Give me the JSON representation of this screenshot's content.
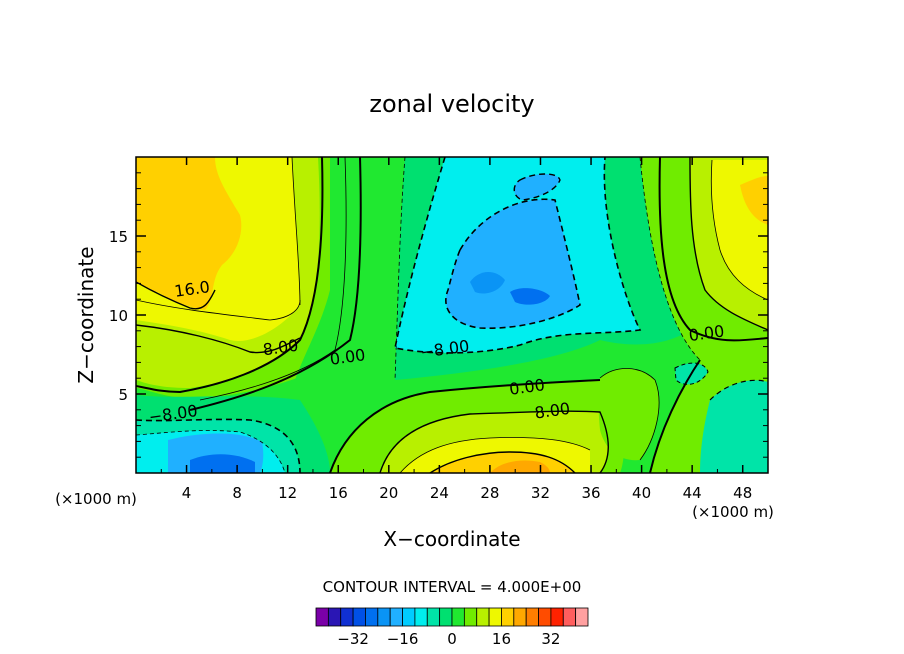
{
  "chart_data": {
    "type": "heatmap",
    "subtype": "filled-contour",
    "title": "zonal velocity",
    "xlabel": "X−coordinate",
    "ylabel": "Z−coordinate",
    "x_unit_left": "(×1000 m)",
    "x_unit_right": "(×1000 m)",
    "xlim": [
      0,
      50
    ],
    "ylim": [
      0,
      20
    ],
    "x_ticks": [
      4,
      8,
      12,
      16,
      20,
      24,
      28,
      32,
      36,
      40,
      44,
      48
    ],
    "y_ticks": [
      5,
      10,
      15
    ],
    "grid": false,
    "contour_interval_label": "CONTOUR INTERVAL = 4.000E+00",
    "contour_interval": 4,
    "colorbar": {
      "levels": [
        -40,
        -36,
        -32,
        -28,
        -24,
        -20,
        -16,
        -12,
        -8,
        -4,
        0,
        4,
        8,
        12,
        16,
        20,
        24,
        28,
        32,
        36,
        40
      ],
      "colors": [
        "#7a00a8",
        "#2a16b4",
        "#1030d2",
        "#0050e6",
        "#0070f0",
        "#0a94f5",
        "#20b0ff",
        "#00ccff",
        "#00eeee",
        "#00e4a8",
        "#00e070",
        "#20e830",
        "#70ec00",
        "#b8f000",
        "#eef800",
        "#ffd000",
        "#ffa800",
        "#ff7e00",
        "#ff4c00",
        "#ff2200",
        "#ff5e5e",
        "#ffa0a0"
      ],
      "tick_labels": [
        "−32",
        "−16",
        "0",
        "16",
        "32"
      ],
      "tick_values": [
        -32,
        -16,
        0,
        16,
        32
      ]
    },
    "contour_labels": [
      {
        "text": "16.0",
        "x": 4.5,
        "y": 11.3
      },
      {
        "text": "8.00",
        "x": 11.5,
        "y": 7.6
      },
      {
        "text": "0.00",
        "x": 16.8,
        "y": 7.0
      },
      {
        "text": "−8.00",
        "x": 24.5,
        "y": 7.5
      },
      {
        "text": "0.00",
        "x": 31.0,
        "y": 5.1
      },
      {
        "text": "8.00",
        "x": 33.0,
        "y": 3.6
      },
      {
        "text": "0.00",
        "x": 45.2,
        "y": 8.5
      },
      {
        "text": "−8.00",
        "x": 3.0,
        "y": 3.4
      }
    ],
    "features": [
      {
        "description": "positive max",
        "x": 4,
        "y": 17,
        "value": 24
      },
      {
        "description": "negative core",
        "x": 31,
        "y": 12,
        "value": -24
      },
      {
        "description": "negative near bottom",
        "x": 6,
        "y": 1,
        "value": -24
      },
      {
        "description": "positive near bottom",
        "x": 30,
        "y": 0.5,
        "value": 20
      }
    ]
  }
}
